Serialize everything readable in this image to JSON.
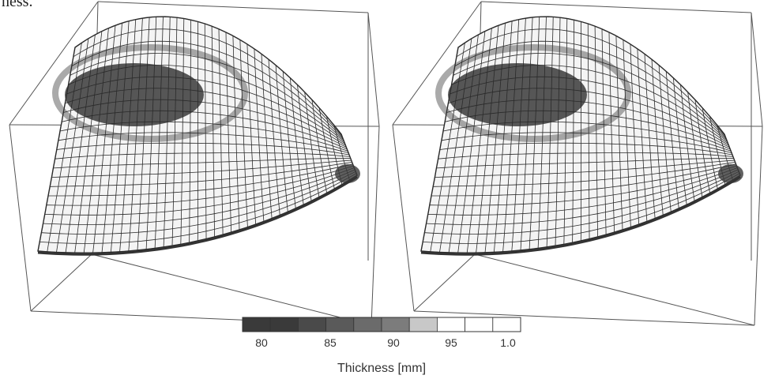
{
  "page": {
    "top_fragment": "ness."
  },
  "panels": [
    {
      "id": "left-model"
    },
    {
      "id": "right-model"
    }
  ],
  "legend": {
    "title": "Thickness [mm]",
    "ticks": [
      "80",
      "85",
      "90",
      "95",
      "1.0"
    ],
    "colors": [
      "#3a3a3a",
      "#3a3a3a",
      "#4a4a4a",
      "#5a5a5a",
      "#6b6b6b",
      "#7c7c7c",
      "#c8c8c8",
      "#ffffff",
      "#ffffff",
      "#ffffff"
    ]
  },
  "colors": {
    "mesh_line": "#2a2a2a",
    "box_line": "#555555",
    "dense_core": "#3a3a3a"
  }
}
